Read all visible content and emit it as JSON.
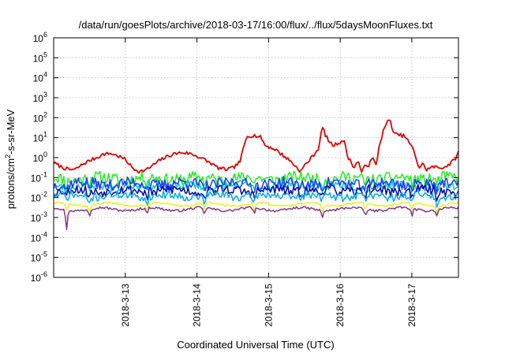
{
  "chart_data": {
    "type": "line",
    "title": "/data/run/goesPlots/archive/2018-03-17/16:00/flux/../flux/5daysMoonFluxes.txt",
    "xlabel": "Coordinated Universal Time (UTC)",
    "ylabel_parts": {
      "before": "protons/cm",
      "sup": "2",
      "after": "-s-sr-MeV"
    },
    "yscale": "log",
    "ylim": [
      1e-06,
      1000000.0
    ],
    "y_ticks": [
      {
        "base": "10",
        "exp": "-6",
        "value": 1e-06
      },
      {
        "base": "10",
        "exp": "-5",
        "value": 1e-05
      },
      {
        "base": "10",
        "exp": "-4",
        "value": 0.0001
      },
      {
        "base": "10",
        "exp": "-3",
        "value": 0.001
      },
      {
        "base": "10",
        "exp": "-2",
        "value": 0.01
      },
      {
        "base": "10",
        "exp": "-1",
        "value": 0.1
      },
      {
        "base": "10",
        "exp": "0",
        "value": 1
      },
      {
        "base": "10",
        "exp": "1",
        "value": 10
      },
      {
        "base": "10",
        "exp": "2",
        "value": 100
      },
      {
        "base": "10",
        "exp": "3",
        "value": 1000
      },
      {
        "base": "10",
        "exp": "4",
        "value": 10000
      },
      {
        "base": "10",
        "exp": "5",
        "value": 100000
      },
      {
        "base": "10",
        "exp": "6",
        "value": 1000000
      }
    ],
    "xlim_days": [
      12.0,
      17.65
    ],
    "x_ticks": [
      {
        "label": "2018-3-13",
        "day": 13
      },
      {
        "label": "2018-3-14",
        "day": 14
      },
      {
        "label": "2018-3-15",
        "day": 15
      },
      {
        "label": "2018-3-16",
        "day": 16
      },
      {
        "label": "2018-3-17",
        "day": 17
      }
    ],
    "grid": true,
    "series": [
      {
        "color": "#e00000",
        "x": [
          12.0,
          12.1,
          12.15,
          12.2,
          12.3,
          12.4,
          12.5,
          12.6,
          12.7,
          12.8,
          12.9,
          13.0,
          13.05,
          13.1,
          13.2,
          13.3,
          13.4,
          13.5,
          13.6,
          13.7,
          13.8,
          13.9,
          14.0,
          14.1,
          14.2,
          14.3,
          14.4,
          14.5,
          14.6,
          14.65,
          14.7,
          14.8,
          14.9,
          14.95,
          15.0,
          15.1,
          15.2,
          15.3,
          15.4,
          15.45,
          15.5,
          15.6,
          15.7,
          15.75,
          15.8,
          15.85,
          15.9,
          16.0,
          16.05,
          16.1,
          16.2,
          16.25,
          16.3,
          16.35,
          16.4,
          16.45,
          16.5,
          16.55,
          16.6,
          16.65,
          16.7,
          16.75,
          16.8,
          16.9,
          17.0,
          17.05,
          17.1,
          17.15,
          17.2,
          17.3,
          17.4,
          17.5,
          17.6,
          17.65
        ],
        "values": [
          0.55,
          0.35,
          0.3,
          0.25,
          0.25,
          0.45,
          0.7,
          1.0,
          1.5,
          1.6,
          1.2,
          0.8,
          0.5,
          0.3,
          0.2,
          0.25,
          0.45,
          0.8,
          1.2,
          1.6,
          1.8,
          1.6,
          1.2,
          0.8,
          0.5,
          0.3,
          0.25,
          0.3,
          0.6,
          3.0,
          12.0,
          13.0,
          10.0,
          4.0,
          3.5,
          2.5,
          1.3,
          0.7,
          0.3,
          0.2,
          0.4,
          1.0,
          3.0,
          35.0,
          12.0,
          6.0,
          4.0,
          6.0,
          8.0,
          1.2,
          0.3,
          0.8,
          0.15,
          0.5,
          0.4,
          1.0,
          0.4,
          5.0,
          20.0,
          60.0,
          70.0,
          15.0,
          14.0,
          12.0,
          3.5,
          1.2,
          0.3,
          0.5,
          0.25,
          0.35,
          0.3,
          0.4,
          0.8,
          1.8
        ]
      },
      {
        "color": "#22ee22",
        "base": 0.09,
        "noise": 0.6,
        "seed": 11
      },
      {
        "color": "#00c8c8",
        "base": 0.038,
        "noise": 0.45,
        "seed": 23
      },
      {
        "color": "#1a3aff",
        "base": 0.05,
        "noise": 0.55,
        "seed": 37
      },
      {
        "color": "#0000aa",
        "base": 0.022,
        "noise": 0.5,
        "seed": 53
      },
      {
        "color": "#00aaee",
        "base": 0.012,
        "noise": 0.4,
        "seed": 71
      },
      {
        "color": "#eeee22",
        "base": 0.0045,
        "noise": 0.1,
        "seed": 89
      },
      {
        "color": "#883388",
        "base": 0.0026,
        "noise": 0.12,
        "seed": 97
      }
    ],
    "dip_days": [
      12.18,
      12.5,
      13.3,
      14.1,
      14.8,
      15.75,
      16.35,
      17.0,
      17.35
    ]
  }
}
